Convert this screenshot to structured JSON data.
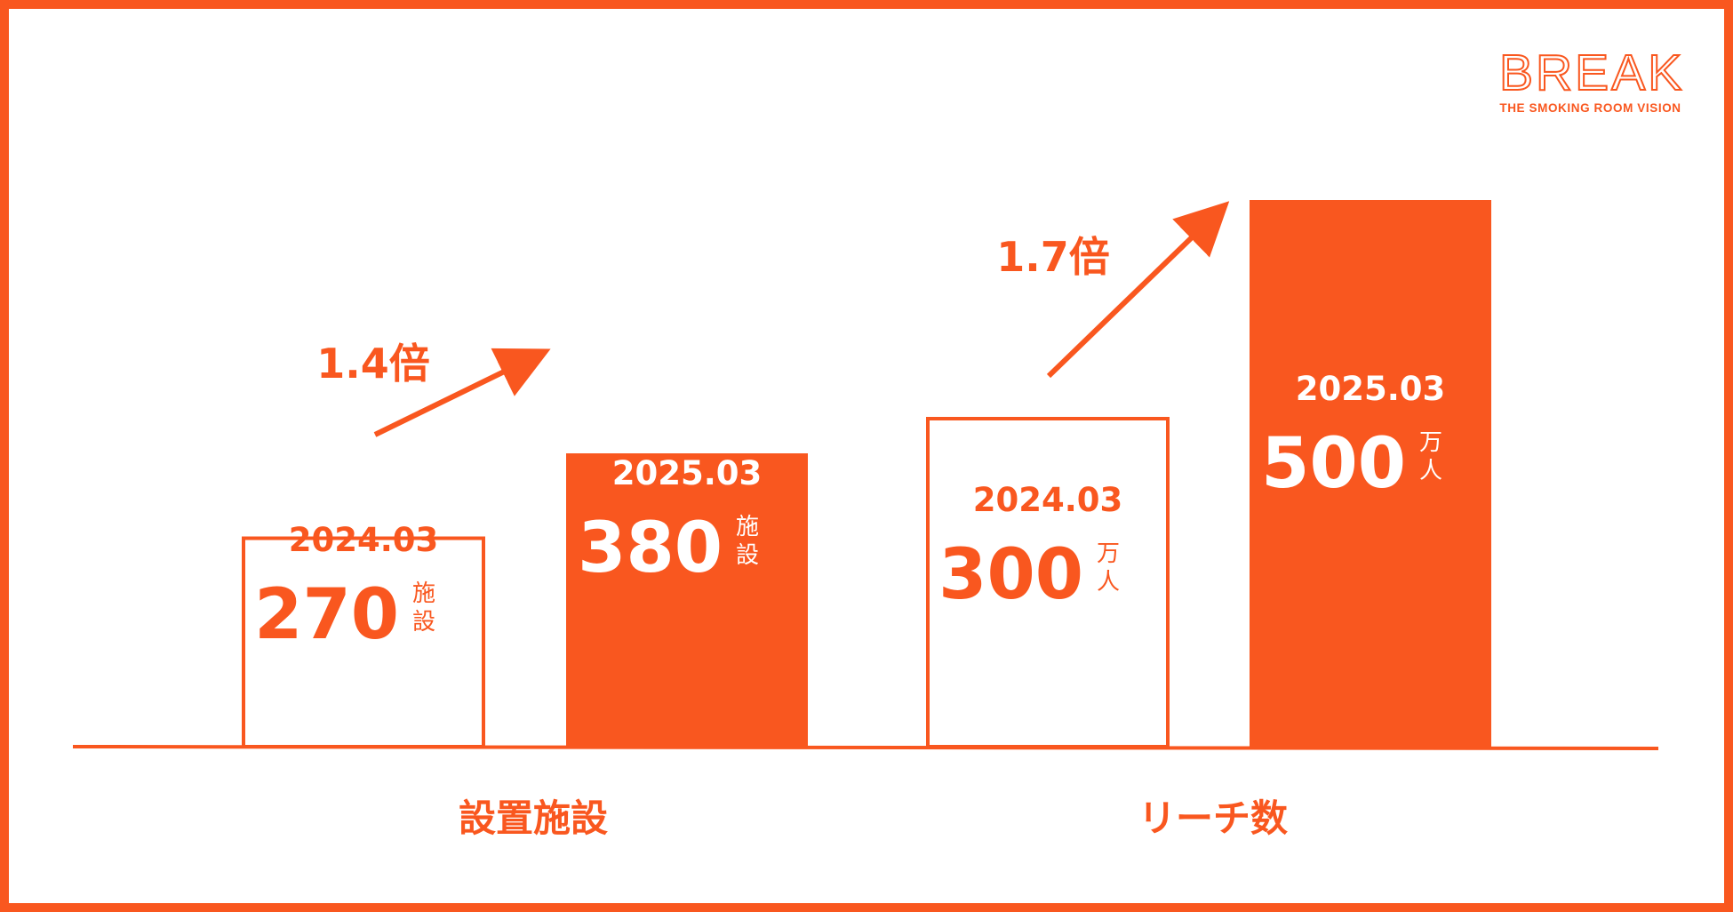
{
  "brand": {
    "logo_text": "BREAK",
    "tagline": "THE SMOKING ROOM VISION",
    "color": "#F9571F"
  },
  "chart_data": {
    "type": "bar",
    "title": "",
    "groups": [
      {
        "category": "設置施設",
        "ratio_label": "1.4倍",
        "bars": [
          {
            "date": "2024.03",
            "value": 270,
            "value_label": "270",
            "unit_chars": [
              "施",
              "設"
            ],
            "style": "outline"
          },
          {
            "date": "2025.03",
            "value": 380,
            "value_label": "380",
            "unit_chars": [
              "施",
              "設"
            ],
            "style": "filled"
          }
        ]
      },
      {
        "category": "リーチ数",
        "ratio_label": "1.7倍",
        "bars": [
          {
            "date": "2024.03",
            "value": 300,
            "value_label": "300",
            "unit_chars": [
              "万",
              "人"
            ],
            "style": "outline"
          },
          {
            "date": "2025.03",
            "value": 500,
            "value_label": "500",
            "unit_chars": [
              "万",
              "人"
            ],
            "style": "filled"
          }
        ]
      }
    ],
    "grid": false,
    "legend": "none"
  }
}
